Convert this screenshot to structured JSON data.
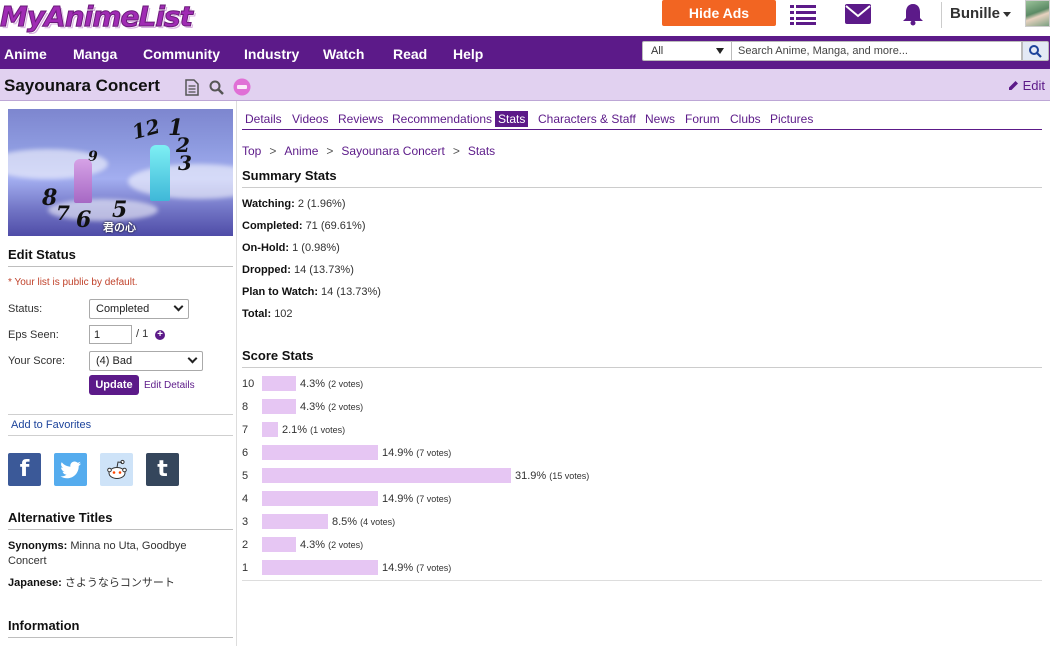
{
  "header": {
    "logo": "MyAnimeList",
    "hide_ads": "Hide Ads",
    "username": "Bunille",
    "colors": {
      "brand": "#5c1a89",
      "hide_ads": "#f26522",
      "bar_fill": "#e6c6f3"
    },
    "icons": [
      "list-icon",
      "mail-icon",
      "bell-icon"
    ]
  },
  "nav": {
    "items": [
      "Anime",
      "Manga",
      "Community",
      "Industry",
      "Watch",
      "Read",
      "Help"
    ],
    "search_scope": "All",
    "search_placeholder": "Search Anime, Manga, and more..."
  },
  "title": {
    "text": "Sayounara Concert",
    "edit": "Edit"
  },
  "cover": {
    "caption": "君の心",
    "numbers": [
      "12",
      "1",
      "2",
      "3",
      "5",
      "6",
      "7",
      "8",
      "9"
    ]
  },
  "edit_status": {
    "heading": "Edit Status",
    "public_note": "* Your list is public by default.",
    "status_label": "Status:",
    "status_value": "Completed",
    "eps_label": "Eps Seen:",
    "eps_value": "1",
    "eps_total": "/ 1",
    "score_label": "Your Score:",
    "score_value": "(4) Bad",
    "update": "Update",
    "edit_details": "Edit Details",
    "add_favorites": "Add to Favorites"
  },
  "social": {
    "facebook": "f",
    "tumblr": "t"
  },
  "alt_titles": {
    "heading": "Alternative Titles",
    "synonyms_label": "Synonyms:",
    "synonyms": "Minna no Uta, Goodbye Concert",
    "japanese_label": "Japanese:",
    "japanese": "さようならコンサート"
  },
  "information": {
    "heading": "Information"
  },
  "tabs": [
    {
      "label": "Details",
      "active": false
    },
    {
      "label": "Videos",
      "active": false
    },
    {
      "label": "Reviews",
      "active": false
    },
    {
      "label": "Recommendations",
      "active": false
    },
    {
      "label": "Stats",
      "active": true
    },
    {
      "label": "Characters & Staff",
      "active": false
    },
    {
      "label": "News",
      "active": false
    },
    {
      "label": "Forum",
      "active": false
    },
    {
      "label": "Clubs",
      "active": false
    },
    {
      "label": "Pictures",
      "active": false
    }
  ],
  "breadcrumb": [
    "Top",
    "Anime",
    "Sayounara Concert",
    "Stats"
  ],
  "breadcrumb_sep": ">",
  "summary": {
    "heading": "Summary Stats",
    "rows": [
      {
        "label": "Watching:",
        "value": "2 (1.96%)"
      },
      {
        "label": "Completed:",
        "value": "71 (69.61%)"
      },
      {
        "label": "On-Hold:",
        "value": "1 (0.98%)"
      },
      {
        "label": "Dropped:",
        "value": "14 (13.73%)"
      },
      {
        "label": "Plan to Watch:",
        "value": "14 (13.73%)"
      },
      {
        "label": "Total:",
        "value": "102"
      }
    ]
  },
  "score_stats": {
    "heading": "Score Stats",
    "rows": [
      {
        "score": "10",
        "percent": 4.3,
        "percent_text": "4.3%",
        "votes": "(2 votes)"
      },
      {
        "score": "8",
        "percent": 4.3,
        "percent_text": "4.3%",
        "votes": "(2 votes)"
      },
      {
        "score": "7",
        "percent": 2.1,
        "percent_text": "2.1%",
        "votes": "(1 votes)"
      },
      {
        "score": "6",
        "percent": 14.9,
        "percent_text": "14.9%",
        "votes": "(7 votes)"
      },
      {
        "score": "5",
        "percent": 31.9,
        "percent_text": "31.9%",
        "votes": "(15 votes)"
      },
      {
        "score": "4",
        "percent": 14.9,
        "percent_text": "14.9%",
        "votes": "(7 votes)"
      },
      {
        "score": "3",
        "percent": 8.5,
        "percent_text": "8.5%",
        "votes": "(4 votes)"
      },
      {
        "score": "2",
        "percent": 4.3,
        "percent_text": "4.3%",
        "votes": "(2 votes)"
      },
      {
        "score": "1",
        "percent": 14.9,
        "percent_text": "14.9%",
        "votes": "(7 votes)"
      }
    ]
  }
}
